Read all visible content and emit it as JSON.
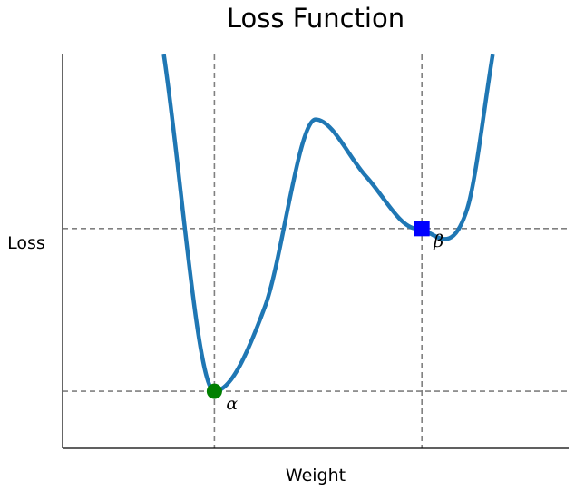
{
  "chart_data": {
    "type": "line",
    "title": "Loss Function",
    "xlabel": "Weight",
    "ylabel": "Loss",
    "xticks": [],
    "yticks": [],
    "grid": false,
    "legend": "none",
    "xlim": [
      0.0,
      10.0
    ],
    "ylim": [
      0.0,
      10.0
    ],
    "series": [
      {
        "x": [
          2.0,
          3.0,
          4.0,
          5.0,
          6.0,
          7.0,
          8.0,
          8.5
        ],
        "y": [
          10.0,
          1.45,
          3.6,
          8.35,
          6.9,
          5.58,
          6.1,
          10.0
        ],
        "color": "#1f77b4"
      }
    ],
    "reference_lines": {
      "vertical": [
        3.0,
        7.1
      ],
      "horizontal": [
        1.45,
        5.58
      ],
      "color": "#808080",
      "style": "dashed"
    },
    "points": [
      {
        "x": 3.0,
        "y": 1.45,
        "marker": "circle",
        "color": "#008000",
        "label": "α"
      },
      {
        "x": 7.1,
        "y": 5.58,
        "marker": "square",
        "color": "#0000ff",
        "label": "β"
      }
    ]
  }
}
